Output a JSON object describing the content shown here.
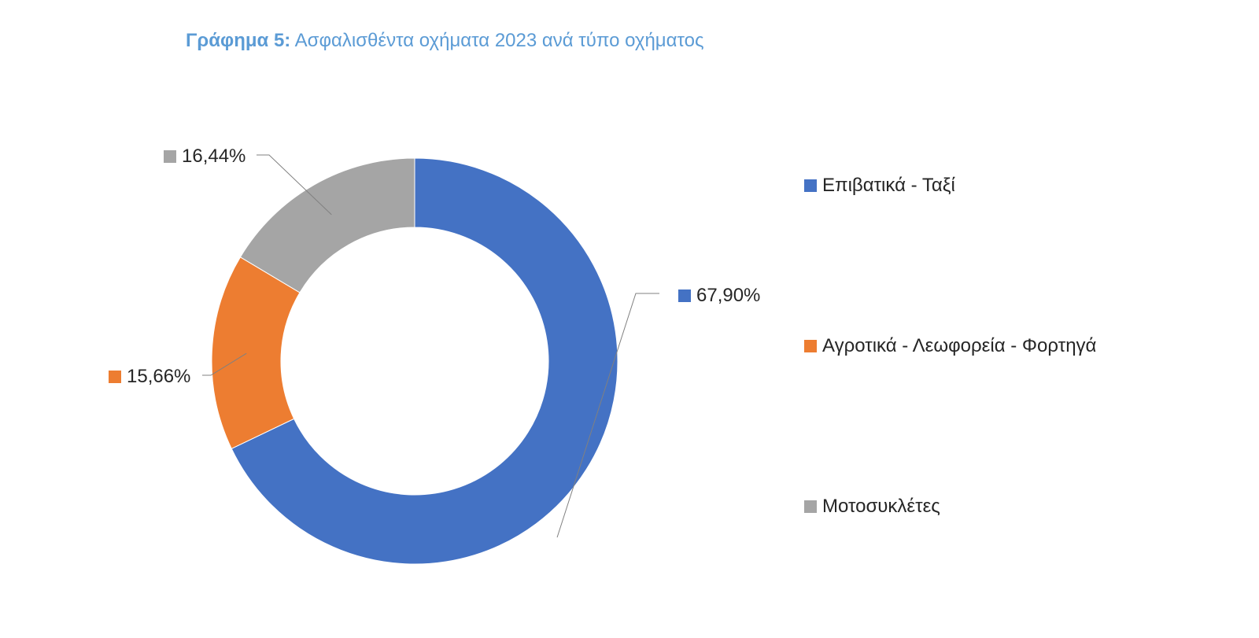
{
  "chart_data": {
    "type": "pie",
    "variant": "donut",
    "title_prefix": "Γράφημα 5:",
    "title": "Ασφαλισθέντα οχήματα 2023 ανά τύπο οχήματος",
    "slices": [
      {
        "name": "Επιβατικά - Ταξί",
        "value": 67.9,
        "label": "67,90%",
        "color": "#4472c4"
      },
      {
        "name": "Αγροτικά - Λεωφορεία - Φορτηγά",
        "value": 15.66,
        "label": "15,66%",
        "color": "#ed7d31"
      },
      {
        "name": "Μοτοσυκλέτες",
        "value": 16.44,
        "label": "16,44%",
        "color": "#a5a5a5"
      }
    ],
    "legend_position": "right",
    "data_labels": "outside with leader lines"
  }
}
